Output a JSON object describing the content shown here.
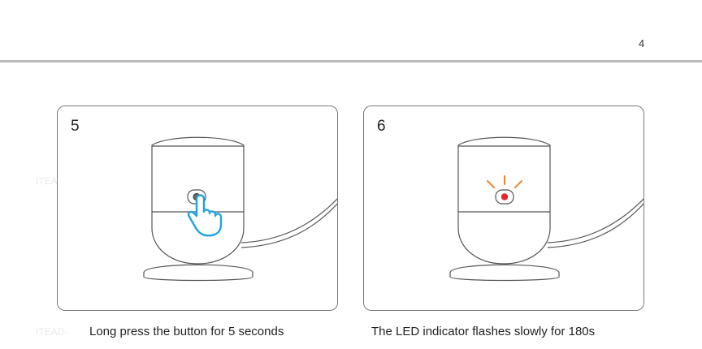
{
  "page": {
    "number": "4"
  },
  "steps": [
    {
      "number": "5",
      "caption": "Long press the button for 5 seconds"
    },
    {
      "number": "6",
      "caption": "The LED indicator flashes slowly for 180s"
    }
  ],
  "watermarks": [
    "ITEAD",
    "ITEAD-"
  ],
  "colors": {
    "hand": "#1ea3e0",
    "led": "#e5262a",
    "led_rays": "#f0852d",
    "outline": "#555555"
  },
  "icons": [
    "camera-device-illustration",
    "pressing-hand-icon",
    "led-indicator-icon"
  ]
}
